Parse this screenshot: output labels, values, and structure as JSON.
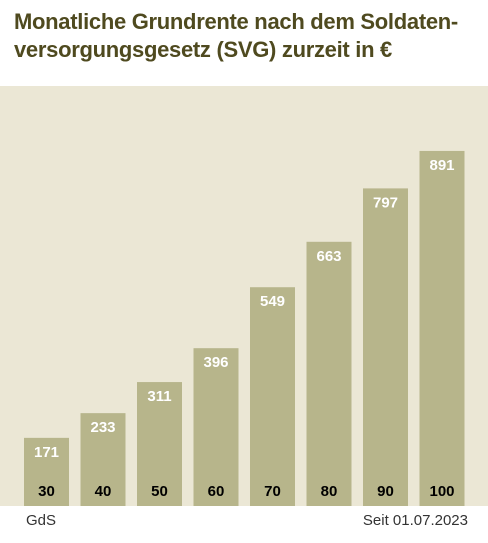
{
  "chart_data": {
    "type": "bar",
    "title_line1": "Monatliche Grundrente nach dem Soldaten-",
    "title_line2": "versorgungsgesetz (SVG) zurzeit in €",
    "categories": [
      "30",
      "40",
      "50",
      "60",
      "70",
      "80",
      "90",
      "100"
    ],
    "values": [
      171,
      233,
      311,
      396,
      549,
      663,
      797,
      891
    ],
    "xlabel": "GdS",
    "note": "Seit 01.07.2023",
    "colors": {
      "bar": "#b7b58b",
      "background": "#ebe7d5",
      "title": "#4f4a1f",
      "value_label": "#ffffff",
      "category_label": "#000000"
    }
  }
}
